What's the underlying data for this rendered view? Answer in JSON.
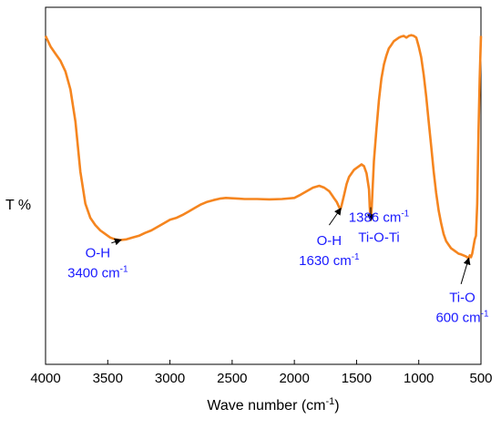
{
  "chart_data": {
    "type": "line",
    "xlabel": "Wave number (cm",
    "xlabel_sup": "-1",
    "xlabel_tail": ")",
    "ylabel": "T %",
    "xlim": [
      4000,
      500
    ],
    "xticks": [
      4000,
      3500,
      3000,
      2500,
      2000,
      1500,
      1000,
      500
    ],
    "ylim": [
      0,
      100
    ],
    "line_color": "#f5851f",
    "annotation_color": "#1a1aff",
    "series": [
      {
        "x": [
          4000,
          3960,
          3920,
          3880,
          3840,
          3800,
          3760,
          3720,
          3680,
          3640,
          3600,
          3560,
          3520,
          3480,
          3440,
          3400,
          3350,
          3300,
          3250,
          3200,
          3150,
          3100,
          3050,
          3000,
          2950,
          2900,
          2850,
          2800,
          2750,
          2700,
          2650,
          2600,
          2550,
          2500,
          2450,
          2400,
          2300,
          2200,
          2100,
          2000,
          1950,
          1900,
          1850,
          1800,
          1760,
          1720,
          1700,
          1680,
          1660,
          1640,
          1630,
          1620,
          1600,
          1580,
          1560,
          1540,
          1520,
          1500,
          1480,
          1460,
          1440,
          1420,
          1400,
          1394,
          1386,
          1378,
          1370,
          1360,
          1340,
          1320,
          1300,
          1280,
          1260,
          1240,
          1220,
          1200,
          1180,
          1160,
          1140,
          1120,
          1100,
          1080,
          1060,
          1040,
          1020,
          1000,
          980,
          960,
          940,
          920,
          900,
          880,
          860,
          840,
          820,
          800,
          780,
          760,
          740,
          720,
          700,
          680,
          660,
          640,
          620,
          610,
          600,
          590,
          580,
          570,
          560,
          550,
          540,
          530,
          520,
          510,
          500
        ],
        "y": [
          92,
          89,
          87,
          85,
          82,
          77,
          68,
          54,
          45,
          41,
          39,
          37.5,
          36.5,
          35.5,
          35,
          34.8,
          35,
          35.5,
          36,
          36.8,
          37.5,
          38.5,
          39.5,
          40.5,
          41,
          41.8,
          42.8,
          43.8,
          44.8,
          45.5,
          46,
          46.4,
          46.6,
          46.5,
          46.4,
          46.3,
          46.3,
          46.2,
          46.3,
          46.6,
          47.5,
          48.5,
          49.5,
          50,
          49.5,
          48.5,
          47.5,
          46.5,
          45.5,
          44,
          43.5,
          44.5,
          47.5,
          50.5,
          52.5,
          53.5,
          54.5,
          55,
          55.5,
          56,
          55.5,
          53.5,
          49,
          44,
          40.5,
          44,
          50,
          57,
          66,
          74,
          80,
          84,
          86.5,
          88.5,
          89.5,
          90.5,
          91,
          91.5,
          91.8,
          92,
          91.5,
          92,
          92.2,
          92,
          91.5,
          89,
          86,
          81,
          75,
          68,
          61,
          54,
          48,
          43,
          39.5,
          36.5,
          34.5,
          33.5,
          32.5,
          32,
          31.5,
          31,
          30.8,
          30.5,
          30.2,
          30,
          29.5,
          30.5,
          30,
          31,
          33,
          35,
          36,
          45,
          65,
          80,
          92
        ]
      }
    ],
    "annotations": [
      {
        "lines": [
          "O-H",
          "3400 cm"
        ],
        "sup": "-1",
        "label_x": 3580,
        "label_y": 33.5,
        "arrow_from": [
          3470,
          34
        ],
        "arrow_to": [
          3400,
          34.8
        ]
      },
      {
        "lines": [
          "O-H",
          "1630 cm"
        ],
        "sup": "-1",
        "label_x": 1720,
        "label_y": 37,
        "arrow_from": [
          1720,
          39
        ],
        "arrow_to": [
          1630,
          43.5
        ]
      },
      {
        "lines": [
          "1386 cm",
          "Ti-O-Ti"
        ],
        "sup": "-1",
        "label_x": 1320,
        "label_y": 43.5,
        "arrow_from": [
          1386,
          44
        ],
        "arrow_to": [
          1386,
          40.5
        ]
      },
      {
        "lines": [
          "Ti-O",
          "600 cm"
        ],
        "sup": "-1",
        "label_x": 650,
        "label_y": 21,
        "arrow_from": [
          660,
          22.5
        ],
        "arrow_to": [
          600,
          29.5
        ]
      }
    ]
  }
}
